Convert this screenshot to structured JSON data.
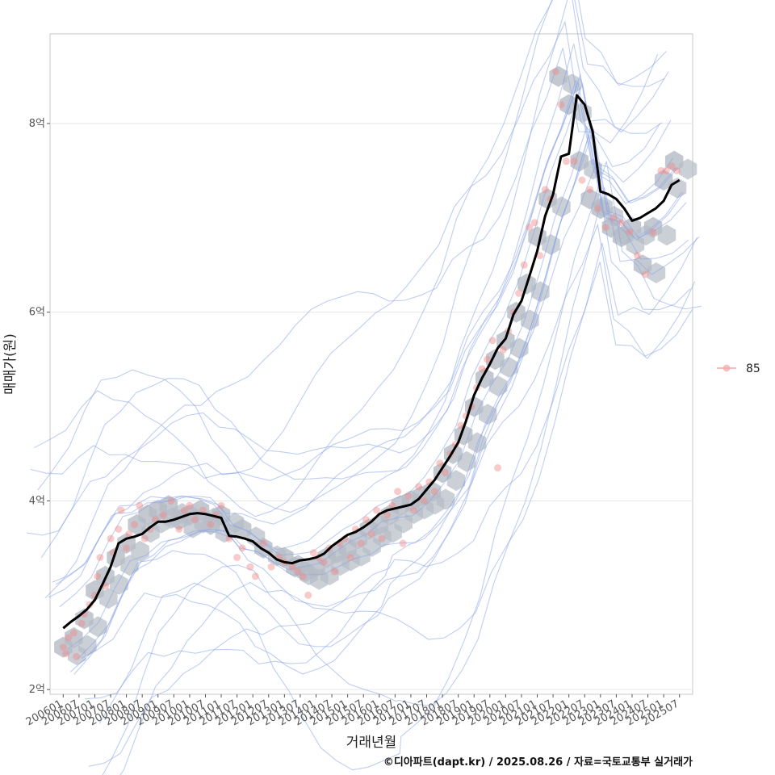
{
  "chart_data": {
    "type": "line",
    "title": "",
    "xlabel": "거래년월",
    "ylabel": "매매가(원)",
    "caption": "©디아파트(dapt.kr) / 2025.08.26 / 자료=국토교통부 실거래가",
    "y_unit": "억",
    "ylim": [
      1.95,
      8.95
    ],
    "y_ticks": [
      {
        "value": 2,
        "label": "2억"
      },
      {
        "value": 4,
        "label": "4억"
      },
      {
        "value": 6,
        "label": "6억"
      },
      {
        "value": 8,
        "label": "8억"
      }
    ],
    "x_tick_labels": [
      "200601",
      "200607",
      "200701",
      "200707",
      "200801",
      "200807",
      "200901",
      "200907",
      "201001",
      "201007",
      "201101",
      "201107",
      "201201",
      "201207",
      "201301",
      "201307",
      "201401",
      "201407",
      "201501",
      "201507",
      "201601",
      "201607",
      "201701",
      "201707",
      "201801",
      "201807",
      "201901",
      "201907",
      "202001",
      "202007",
      "202101",
      "202107",
      "202201",
      "202207",
      "202301",
      "202307",
      "202401",
      "202407",
      "202501",
      "202507"
    ],
    "xlim": [
      "2005-08",
      "2025-12"
    ],
    "grid": true,
    "legend": {
      "position": "right",
      "entries": [
        {
          "label": "85",
          "color": "#f4a6a6"
        }
      ]
    },
    "colors": {
      "trend": "#000000",
      "points": "#f08a8a",
      "hex": "#b5bcc6",
      "contour": "#8aa4e6"
    },
    "trend_series": {
      "x": [
        "2006-01",
        "2006-04",
        "2006-07",
        "2006-10",
        "2007-01",
        "2007-04",
        "2007-07",
        "2007-10",
        "2008-01",
        "2008-04",
        "2008-07",
        "2008-10",
        "2009-01",
        "2009-04",
        "2009-07",
        "2009-10",
        "2010-01",
        "2010-04",
        "2010-07",
        "2010-10",
        "2011-01",
        "2011-04",
        "2011-07",
        "2011-10",
        "2012-01",
        "2012-04",
        "2012-07",
        "2012-10",
        "2013-01",
        "2013-04",
        "2013-07",
        "2013-10",
        "2014-01",
        "2014-04",
        "2014-07",
        "2014-10",
        "2015-01",
        "2015-04",
        "2015-07",
        "2015-10",
        "2016-01",
        "2016-04",
        "2016-07",
        "2016-10",
        "2017-01",
        "2017-04",
        "2017-07",
        "2017-10",
        "2018-01",
        "2018-04",
        "2018-07",
        "2018-10",
        "2019-01",
        "2019-04",
        "2019-07",
        "2019-10",
        "2020-01",
        "2020-04",
        "2020-07",
        "2020-10",
        "2021-01",
        "2021-04",
        "2021-07",
        "2021-10",
        "2022-01",
        "2022-04",
        "2022-07",
        "2022-10",
        "2023-01",
        "2023-04",
        "2023-07",
        "2023-10",
        "2024-01",
        "2024-04",
        "2024-07",
        "2024-10",
        "2025-01",
        "2025-04",
        "2025-07"
      ],
      "values": [
        2.65,
        2.72,
        2.78,
        2.85,
        2.95,
        3.12,
        3.3,
        3.55,
        3.6,
        3.62,
        3.65,
        3.72,
        3.78,
        3.78,
        3.8,
        3.83,
        3.86,
        3.87,
        3.86,
        3.84,
        3.82,
        3.63,
        3.62,
        3.6,
        3.57,
        3.5,
        3.45,
        3.38,
        3.35,
        3.34,
        3.37,
        3.38,
        3.4,
        3.44,
        3.52,
        3.58,
        3.64,
        3.67,
        3.72,
        3.78,
        3.86,
        3.9,
        3.92,
        3.94,
        3.96,
        4.02,
        4.12,
        4.22,
        4.35,
        4.48,
        4.62,
        4.85,
        5.12,
        5.3,
        5.45,
        5.62,
        5.72,
        5.98,
        6.12,
        6.38,
        6.65,
        7.02,
        7.25,
        7.65,
        7.68,
        8.3,
        8.2,
        7.92,
        7.28,
        7.25,
        7.2,
        7.1,
        6.97,
        7.0,
        7.05,
        7.1,
        7.18,
        7.35,
        7.4
      ]
    },
    "transactions": {
      "x": [
        "2006-01",
        "2006-02",
        "2006-03",
        "2006-05",
        "2006-06",
        "2006-08",
        "2006-09",
        "2006-11",
        "2007-01",
        "2007-02",
        "2007-03",
        "2007-05",
        "2007-07",
        "2007-08",
        "2007-10",
        "2007-11",
        "2008-01",
        "2008-02",
        "2008-04",
        "2008-06",
        "2008-08",
        "2008-10",
        "2008-12",
        "2009-03",
        "2009-06",
        "2009-09",
        "2009-11",
        "2010-01",
        "2010-03",
        "2010-06",
        "2010-09",
        "2010-11",
        "2011-01",
        "2011-04",
        "2011-07",
        "2011-09",
        "2011-12",
        "2012-02",
        "2012-05",
        "2012-08",
        "2012-11",
        "2013-01",
        "2013-04",
        "2013-06",
        "2013-08",
        "2013-10",
        "2013-12",
        "2014-02",
        "2014-04",
        "2014-06",
        "2014-08",
        "2014-10",
        "2014-12",
        "2015-02",
        "2015-04",
        "2015-06",
        "2015-08",
        "2015-10",
        "2015-12",
        "2016-02",
        "2016-04",
        "2016-06",
        "2016-08",
        "2016-10",
        "2016-12",
        "2017-02",
        "2017-04",
        "2017-06",
        "2017-08",
        "2017-10",
        "2017-12",
        "2018-02",
        "2018-04",
        "2018-06",
        "2018-08",
        "2018-10",
        "2018-12",
        "2019-02",
        "2019-04",
        "2019-06",
        "2019-08",
        "2019-10",
        "2019-12",
        "2020-02",
        "2020-04",
        "2020-06",
        "2020-08",
        "2020-10",
        "2020-12",
        "2021-02",
        "2021-04",
        "2021-06",
        "2021-08",
        "2021-10",
        "2021-12",
        "2022-03",
        "2022-06",
        "2022-09",
        "2022-12",
        "2023-03",
        "2023-06",
        "2023-09",
        "2023-12",
        "2024-03",
        "2024-06",
        "2024-09",
        "2024-12",
        "2025-02",
        "2025-04",
        "2025-06"
      ],
      "values": [
        2.45,
        2.38,
        2.55,
        2.6,
        2.35,
        2.7,
        2.8,
        2.9,
        3.0,
        3.2,
        3.4,
        3.1,
        3.6,
        3.45,
        3.7,
        3.9,
        3.5,
        3.65,
        3.75,
        3.95,
        3.6,
        3.7,
        3.8,
        3.85,
        4.0,
        3.7,
        3.9,
        3.95,
        3.8,
        3.9,
        3.75,
        3.85,
        3.95,
        3.6,
        3.4,
        3.5,
        3.3,
        3.2,
        3.55,
        3.3,
        3.4,
        3.35,
        3.3,
        3.25,
        3.2,
        3.0,
        3.45,
        3.4,
        3.35,
        3.5,
        3.25,
        3.55,
        3.6,
        3.4,
        3.7,
        3.55,
        3.8,
        3.65,
        3.9,
        3.6,
        3.85,
        3.95,
        4.1,
        3.55,
        4.05,
        3.9,
        4.15,
        4.0,
        4.2,
        4.1,
        4.4,
        4.3,
        4.5,
        4.6,
        4.8,
        4.9,
        5.0,
        5.2,
        5.4,
        5.5,
        5.7,
        4.35,
        5.6,
        5.8,
        6.0,
        6.2,
        6.5,
        6.9,
        6.95,
        6.6,
        7.3,
        7.2,
        8.55,
        8.2,
        7.6,
        7.6,
        7.4,
        7.3,
        7.1,
        6.9,
        7.0,
        6.95,
        6.85,
        6.6,
        6.4,
        6.85,
        7.5,
        7.5,
        7.55,
        7.5
      ]
    },
    "density_bins": {
      "x": [
        "2006-01",
        "2006-05",
        "2006-09",
        "2007-01",
        "2007-05",
        "2007-09",
        "2008-01",
        "2008-05",
        "2008-09",
        "2009-01",
        "2009-05",
        "2009-09",
        "2010-01",
        "2010-05",
        "2010-09",
        "2011-01",
        "2011-09",
        "2012-05",
        "2013-01",
        "2013-05",
        "2013-09",
        "2014-01",
        "2014-05",
        "2014-09",
        "2015-01",
        "2015-05",
        "2015-09",
        "2016-01",
        "2016-05",
        "2016-09",
        "2017-01",
        "2017-05",
        "2017-09",
        "2018-01",
        "2018-05",
        "2018-09",
        "2019-01",
        "2019-05",
        "2019-09",
        "2020-01",
        "2020-05",
        "2020-09",
        "2021-01",
        "2021-05",
        "2021-09",
        "2022-01",
        "2022-05",
        "2022-09",
        "2023-01",
        "2023-05",
        "2023-09",
        "2024-01",
        "2024-05",
        "2024-09",
        "2025-01",
        "2025-05"
      ],
      "values": [
        2.45,
        2.55,
        2.75,
        3.05,
        3.2,
        3.4,
        3.55,
        3.75,
        3.85,
        3.9,
        3.95,
        3.8,
        3.85,
        3.9,
        3.75,
        3.85,
        3.7,
        3.5,
        3.4,
        3.3,
        3.25,
        3.3,
        3.4,
        3.45,
        3.5,
        3.6,
        3.7,
        3.75,
        3.85,
        3.95,
        4.0,
        4.05,
        4.1,
        4.3,
        4.5,
        4.7,
        5.0,
        5.3,
        5.5,
        5.7,
        6.0,
        6.3,
        6.8,
        7.2,
        8.5,
        8.2,
        7.6,
        7.2,
        7.1,
        6.9,
        6.8,
        6.9,
        6.5,
        6.9,
        7.4,
        7.6
      ]
    },
    "density_contours": 10
  }
}
